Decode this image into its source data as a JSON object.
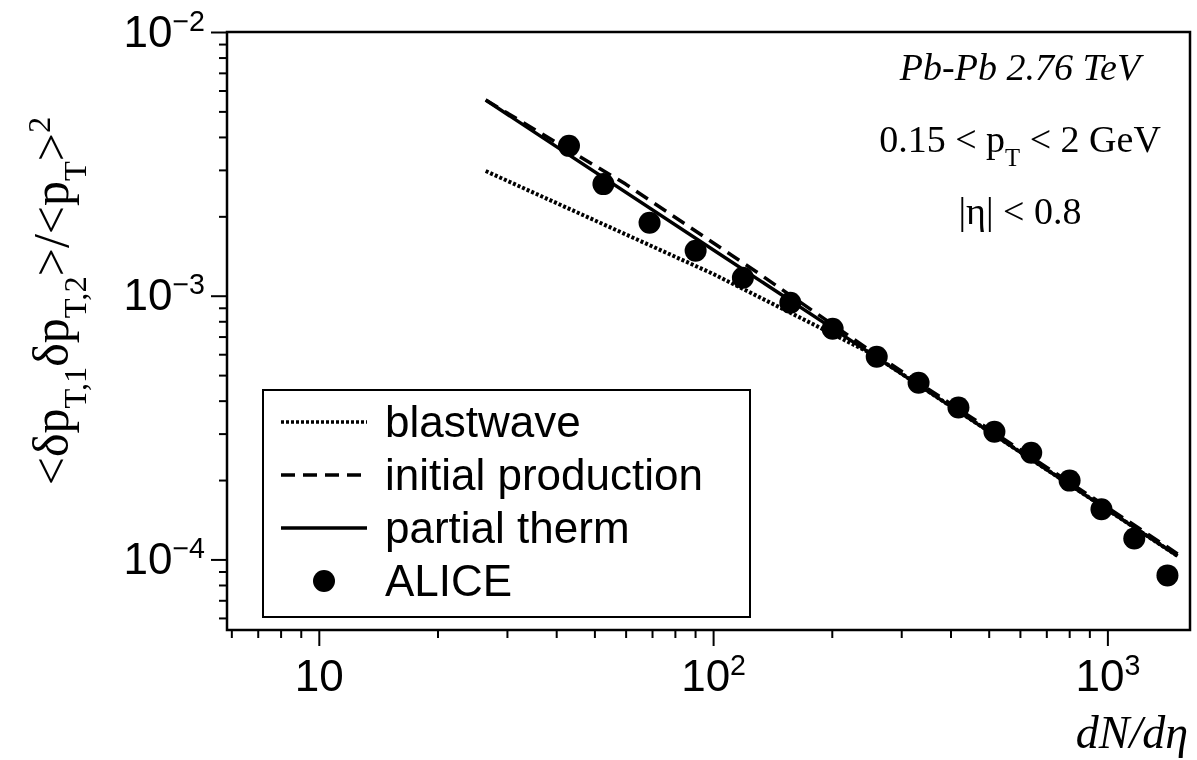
{
  "chart_data": {
    "type": "line",
    "xlabel": "dN/dη",
    "ylabel": "<δp$_{T,1}$δp$_{T,2}$>/<p$_{T}$>$^{2}$",
    "annotations": [
      "Pb-Pb 2.76 TeV",
      "0.15 < p$_{T}$ < 2 GeV",
      "|η| < 0.8"
    ],
    "log": "xy",
    "grid": false,
    "legend": "bottom left",
    "xlim": [
      5.85,
      1620
    ],
    "ylim": [
      5.4e-05,
      0.01
    ],
    "xticks": [
      {
        "value": 6,
        "label": null
      },
      {
        "value": 7,
        "label": null
      },
      {
        "value": 8,
        "label": null
      },
      {
        "value": 9,
        "label": null
      },
      10,
      {
        "value": 20,
        "label": null
      },
      {
        "value": 30,
        "label": null
      },
      {
        "value": 40,
        "label": null
      },
      {
        "value": 50,
        "label": null
      },
      {
        "value": 60,
        "label": null
      },
      {
        "value": 70,
        "label": null
      },
      {
        "value": 80,
        "label": null
      },
      {
        "value": 90,
        "label": null
      },
      {
        "value": 100,
        "label": "10$^{2}$"
      },
      {
        "value": 200,
        "label": null
      },
      {
        "value": 300,
        "label": null
      },
      {
        "value": 400,
        "label": null
      },
      {
        "value": 500,
        "label": null
      },
      {
        "value": 600,
        "label": null
      },
      {
        "value": 700,
        "label": null
      },
      {
        "value": 800,
        "label": null
      },
      {
        "value": 900,
        "label": null
      },
      {
        "value": 1000,
        "label": "10$^{3}$"
      }
    ],
    "yticks": [
      {
        "value": 6e-05,
        "label": null
      },
      {
        "value": 7e-05,
        "label": null
      },
      {
        "value": 8e-05,
        "label": null
      },
      {
        "value": 9e-05,
        "label": null
      },
      {
        "value": 0.0001,
        "label": "10$^{−4}$"
      },
      {
        "value": 0.0002,
        "label": null
      },
      {
        "value": 0.0003,
        "label": null
      },
      {
        "value": 0.0004,
        "label": null
      },
      {
        "value": 0.0005,
        "label": null
      },
      {
        "value": 0.0006,
        "label": null
      },
      {
        "value": 0.0007,
        "label": null
      },
      {
        "value": 0.0008,
        "label": null
      },
      {
        "value": 0.0009,
        "label": null
      },
      {
        "value": 0.001,
        "label": "10$^{−3}$"
      },
      {
        "value": 0.002,
        "label": null
      },
      {
        "value": 0.003,
        "label": null
      },
      {
        "value": 0.004,
        "label": null
      },
      {
        "value": 0.005,
        "label": null
      },
      {
        "value": 0.006,
        "label": null
      },
      {
        "value": 0.007,
        "label": null
      },
      {
        "value": 0.008,
        "label": null
      },
      {
        "value": 0.009,
        "label": null
      },
      {
        "value": 0.01,
        "label": "10$^{−2}$"
      }
    ],
    "series": [
      {
        "name": "blastwave",
        "type": "line",
        "line_style": "dotted",
        "color": "#000000",
        "x": [
          26.5,
          100,
          250,
          1507
        ],
        "values": [
          0.00297,
          0.00121,
          0.000607,
          0.000103
        ]
      },
      {
        "name": "initial production",
        "type": "line",
        "line_style": "dashed",
        "color": "#000000",
        "x": [
          26.5,
          60,
          130,
          250,
          1507
        ],
        "values": [
          0.00552,
          0.00265,
          0.00122,
          0.00062,
          0.000105
        ]
      },
      {
        "name": "partial therm",
        "type": "line",
        "line_style": "solid",
        "color": "#000000",
        "x": [
          26.5,
          200,
          1507
        ],
        "values": [
          0.00552,
          0.000755,
          0.000103
        ]
      },
      {
        "name": "ALICE",
        "type": "scatter",
        "marker": "circle",
        "color": "#000000",
        "x": [
          43.1,
          52.7,
          69,
          90.3,
          119,
          157,
          201,
          260,
          332,
          419,
          517,
          641,
          802,
          966,
          1170,
          1420
        ],
        "values": [
          0.0037,
          0.00265,
          0.00189,
          0.00148,
          0.00117,
          0.00094,
          0.00075,
          0.000587,
          0.000468,
          0.000377,
          0.000305,
          0.000254,
          0.000199,
          0.000155,
          0.00012,
          8.7e-05
        ]
      }
    ]
  }
}
